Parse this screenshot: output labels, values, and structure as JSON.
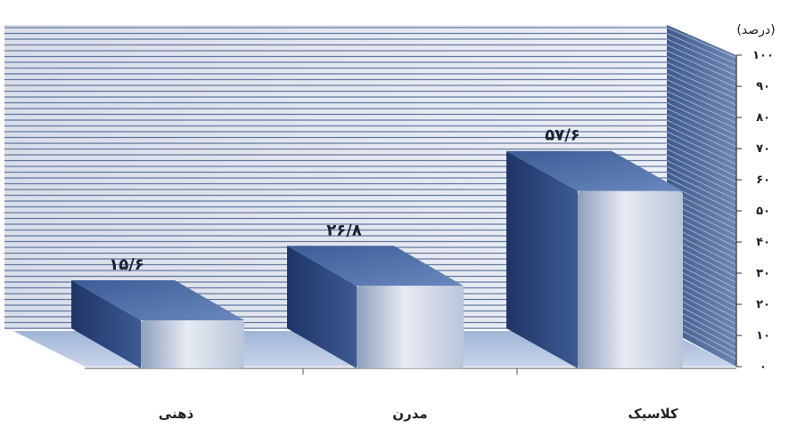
{
  "chart_data": {
    "type": "bar",
    "categories": [
      "ذهنی",
      "مدرن",
      "کلاسیک"
    ],
    "values": [
      15.6,
      26.8,
      57.6
    ],
    "value_labels": [
      "۱۵/۶",
      "۲۶/۸",
      "۵۷/۶"
    ],
    "ylabel": "(درصد)",
    "ylim": [
      0,
      100
    ],
    "y_ticks": [
      0,
      10,
      20,
      30,
      40,
      50,
      60,
      70,
      80,
      90,
      100
    ],
    "y_tick_labels": [
      "۰",
      "۱۰",
      "۲۰",
      "۳۰",
      "۴۰",
      "۵۰",
      "۶۰",
      "۷۰",
      "۸۰",
      "۹۰",
      "۱۰۰"
    ],
    "grid": true,
    "legend": "none",
    "style": "3d-column"
  }
}
